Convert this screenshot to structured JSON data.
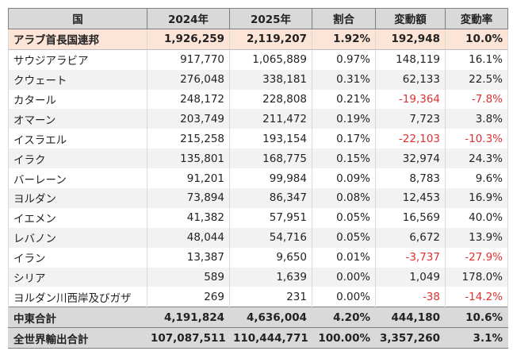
{
  "columns": [
    "国",
    "2024年",
    "2025年",
    "割合",
    "変動額",
    "変動率"
  ],
  "rows": [
    {
      "country": "アラブ首長国連邦",
      "y2024": "1,926,259",
      "y2025": "2,119,207",
      "share": "1.92%",
      "change": "192,948",
      "rate": "10.0%",
      "negative": false
    },
    {
      "country": "サウジアラビア",
      "y2024": "917,770",
      "y2025": "1,065,889",
      "share": "0.97%",
      "change": "148,119",
      "rate": "16.1%",
      "negative": false
    },
    {
      "country": "クウェート",
      "y2024": "276,048",
      "y2025": "338,181",
      "share": "0.31%",
      "change": "62,133",
      "rate": "22.5%",
      "negative": false
    },
    {
      "country": "カタール",
      "y2024": "248,172",
      "y2025": "228,808",
      "share": "0.21%",
      "change": "-19,364",
      "rate": "-7.8%",
      "negative": true
    },
    {
      "country": "オマーン",
      "y2024": "203,749",
      "y2025": "211,472",
      "share": "0.19%",
      "change": "7,723",
      "rate": "3.8%",
      "negative": false
    },
    {
      "country": "イスラエル",
      "y2024": "215,258",
      "y2025": "193,154",
      "share": "0.17%",
      "change": "-22,103",
      "rate": "-10.3%",
      "negative": true
    },
    {
      "country": "イラク",
      "y2024": "135,801",
      "y2025": "168,775",
      "share": "0.15%",
      "change": "32,974",
      "rate": "24.3%",
      "negative": false
    },
    {
      "country": "バーレーン",
      "y2024": "91,201",
      "y2025": "99,984",
      "share": "0.09%",
      "change": "8,783",
      "rate": "9.6%",
      "negative": false
    },
    {
      "country": "ヨルダン",
      "y2024": "73,894",
      "y2025": "86,347",
      "share": "0.08%",
      "change": "12,453",
      "rate": "16.9%",
      "negative": false
    },
    {
      "country": "イエメン",
      "y2024": "41,382",
      "y2025": "57,951",
      "share": "0.05%",
      "change": "16,569",
      "rate": "40.0%",
      "negative": false
    },
    {
      "country": "レバノン",
      "y2024": "48,044",
      "y2025": "54,716",
      "share": "0.05%",
      "change": "6,672",
      "rate": "13.9%",
      "negative": false
    },
    {
      "country": "イラン",
      "y2024": "13,387",
      "y2025": "9,650",
      "share": "0.01%",
      "change": "-3,737",
      "rate": "-27.9%",
      "negative": true
    },
    {
      "country": "シリア",
      "y2024": "589",
      "y2025": "1,639",
      "share": "0.00%",
      "change": "1,049",
      "rate": "178.0%",
      "negative": false
    },
    {
      "country": "ヨルダン川西岸及びガザ",
      "y2024": "269",
      "y2025": "231",
      "share": "0.00%",
      "change": "-38",
      "rate": "-14.2%",
      "negative": true
    }
  ],
  "middle_east_total": {
    "country": "中東合計",
    "y2024": "4,191,824",
    "y2025": "4,636,004",
    "share": "4.20%",
    "change": "444,180",
    "rate": "10.6%"
  },
  "world_total": {
    "country": "全世界輸出合計",
    "y2024": "107,087,511",
    "y2025": "110,444,771",
    "share": "100.00%",
    "change": "3,357,260",
    "rate": "3.1%"
  },
  "colors": {
    "header_bg": "#d9d9d9",
    "highlight_bg": "#fce4d6",
    "zebra_bg": "#f2f2f2",
    "negative": "#e03030"
  }
}
